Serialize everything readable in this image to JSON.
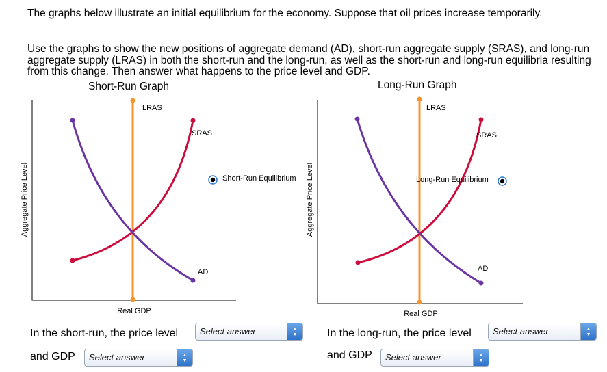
{
  "instructions": {
    "p1": "The graphs below illustrate an initial equilibrium for the economy. Suppose that oil prices increase temporarily.",
    "p2": "Use the graphs to show the new positions of aggregate demand (AD), short-run aggregate supply (SRAS), and long-run aggregate supply (LRAS) in both the short-run and the long-run, as well as the short-run and long-run equilibria resulting from this change. Then answer what happens to the price level and GDP."
  },
  "short_run_graph": {
    "title": "Short-Run Graph",
    "y_label": "Aggregate Price Level",
    "x_label": "Real GDP",
    "curve_labels": {
      "lras": "LRAS",
      "sras": "SRAS",
      "ad": "AD"
    },
    "tool_label": "Short-Run Equilibrium"
  },
  "long_run_graph": {
    "title": "Long-Run Graph",
    "y_label": "Aggregate Price Level",
    "x_label": "Real GDP",
    "curve_labels": {
      "lras": "LRAS",
      "sras": "SRAS",
      "ad": "AD"
    },
    "tool_label": "Long-Run Equilibrium"
  },
  "questions": {
    "short_run_prefix": "In the short-run, the price level",
    "long_run_prefix": "In the long-run, the price level",
    "and_gdp": "and GDP",
    "select_placeholder": "Select answer"
  },
  "colors": {
    "lras": "#f7942c",
    "sras": "#cc0c3c",
    "ad": "#6a35a2",
    "tool_point": "#2a7ad2"
  }
}
